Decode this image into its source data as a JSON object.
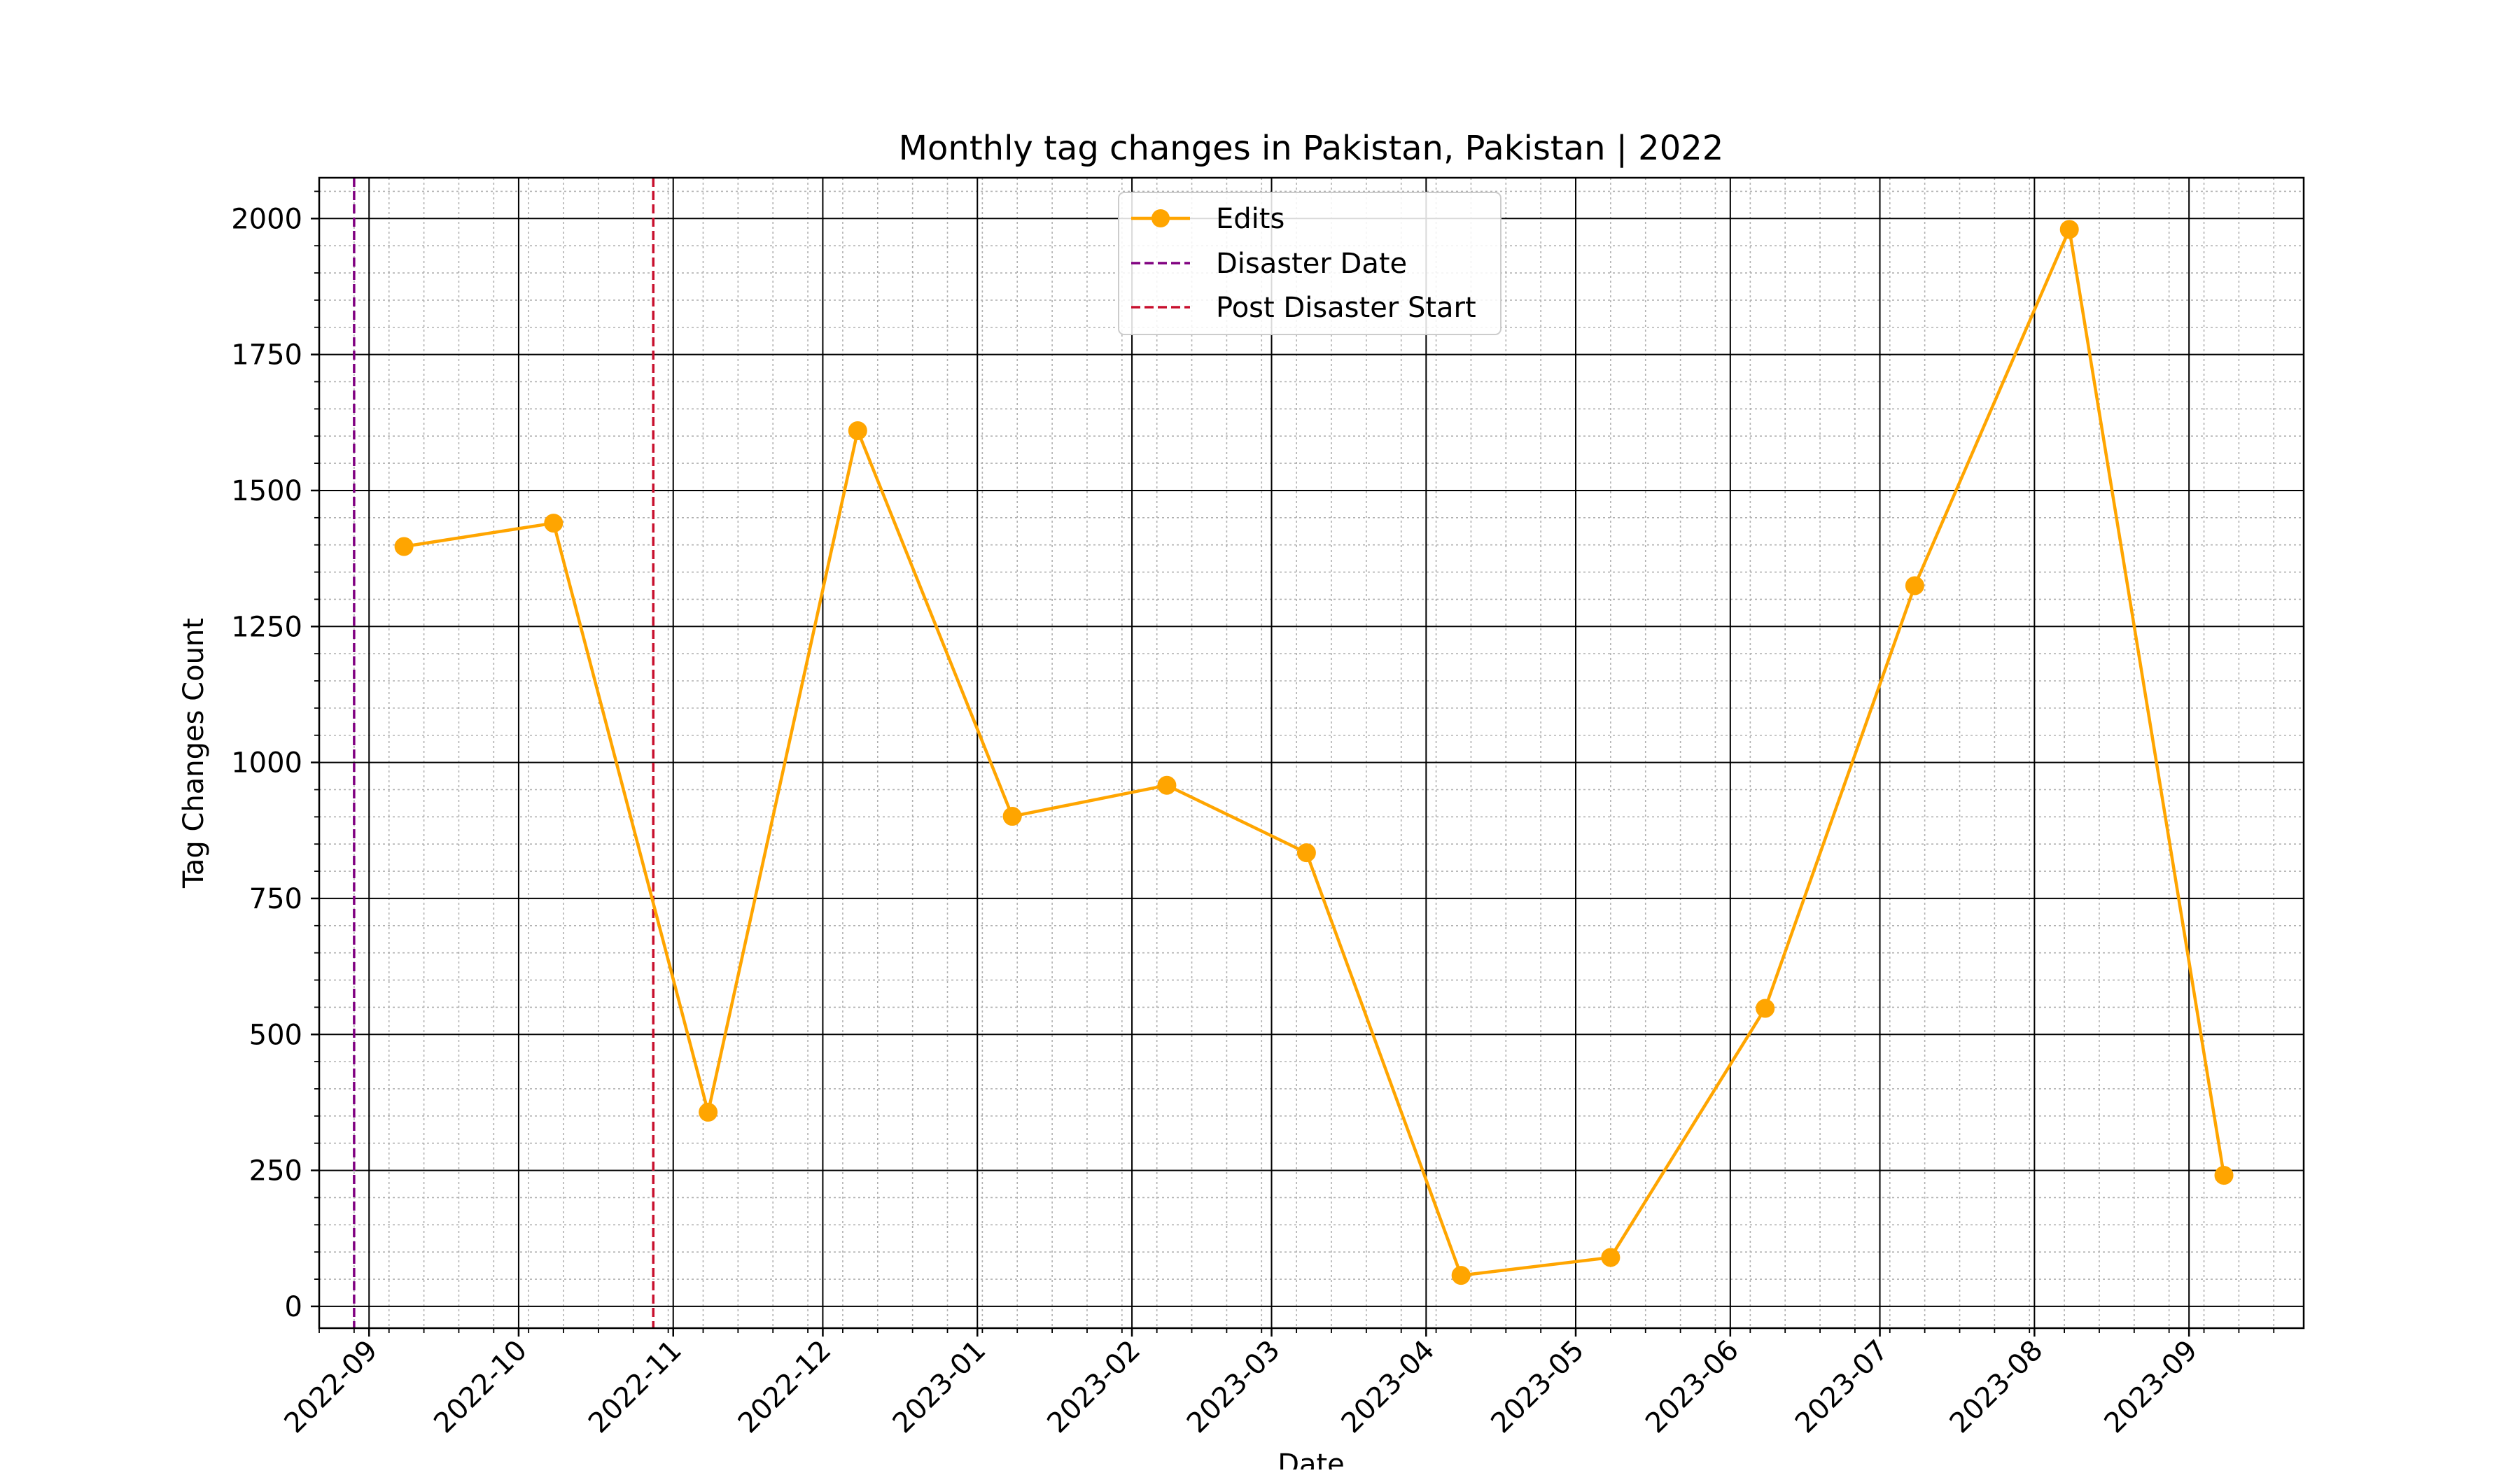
{
  "chart_data": {
    "type": "line",
    "title": "Monthly tag changes in Pakistan, Pakistan | 2022",
    "xlabel": "Date",
    "ylabel": "Tag Changes Count",
    "xlim": [
      "2022-08-22",
      "2023-09-24"
    ],
    "ylim": [
      -40,
      2075
    ],
    "y_ticks": [
      0,
      250,
      500,
      750,
      1000,
      1250,
      1500,
      1750,
      2000
    ],
    "x_ticks": [
      "2022-09",
      "2022-10",
      "2022-11",
      "2022-12",
      "2023-01",
      "2023-02",
      "2023-03",
      "2023-04",
      "2023-05",
      "2023-06",
      "2023-07",
      "2023-08",
      "2023-09"
    ],
    "grid": true,
    "minor_grid": true,
    "legend_position": "top-center",
    "series": [
      {
        "name": "Edits",
        "color": "#FFA500",
        "marker": "circle",
        "x": [
          "2022-09-08",
          "2022-10-08",
          "2022-11-08",
          "2022-12-08",
          "2023-01-08",
          "2023-02-08",
          "2023-03-08",
          "2023-04-08",
          "2023-05-08",
          "2023-06-08",
          "2023-07-08",
          "2023-08-08",
          "2023-09-08"
        ],
        "y": [
          1397,
          1440,
          357,
          1610,
          901,
          958,
          834,
          57,
          90,
          548,
          1325,
          1980,
          241
        ]
      }
    ],
    "vlines": [
      {
        "name": "Disaster Date",
        "date": "2022-08-29",
        "color": "#800080",
        "style": "dashed"
      },
      {
        "name": "Post Disaster Start",
        "date": "2022-10-28",
        "color": "#C8102E",
        "style": "dashed"
      }
    ]
  }
}
